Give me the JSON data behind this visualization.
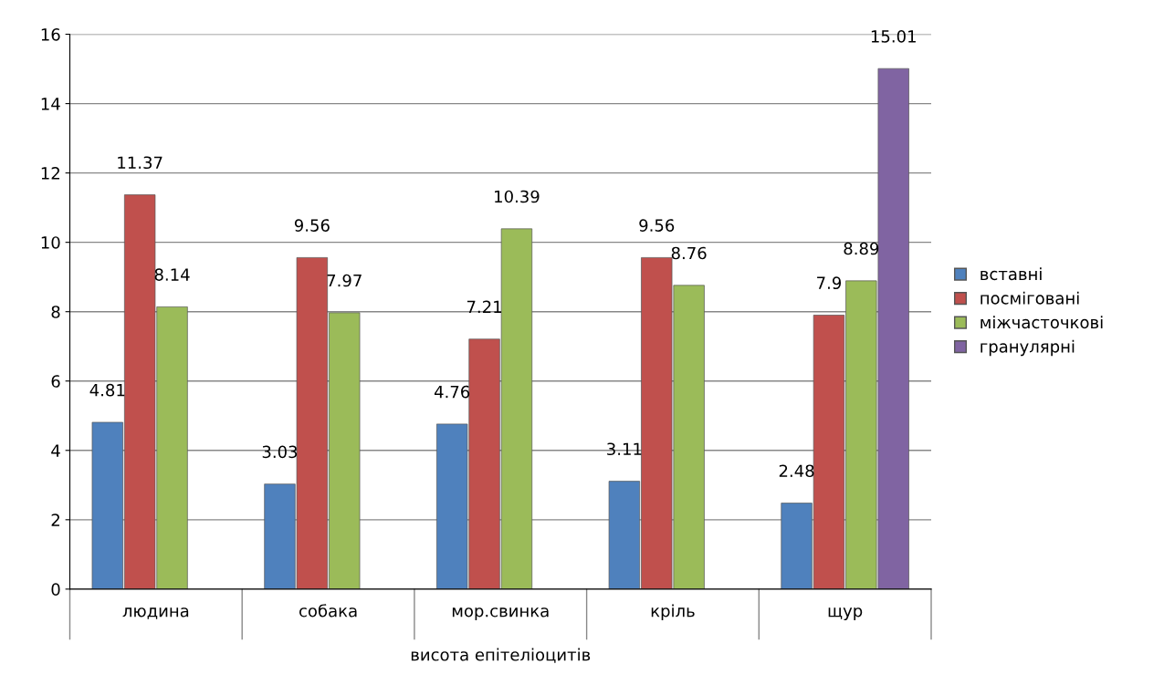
{
  "chart_data": {
    "type": "bar",
    "categories": [
      "людина",
      "собака",
      "мор.свинка",
      "кріль",
      "щур"
    ],
    "xlabel": "висота епітеліоцитів",
    "series": [
      {
        "name": "вставні",
        "color": "#4f81bd",
        "values": [
          4.81,
          3.03,
          4.76,
          3.11,
          2.48
        ]
      },
      {
        "name": "посміговані",
        "color": "#c0504d",
        "values": [
          11.37,
          9.56,
          7.21,
          9.56,
          7.9
        ]
      },
      {
        "name": "міжчасточкові",
        "color": "#9bbb59",
        "values": [
          8.14,
          7.97,
          10.39,
          8.76,
          8.89
        ]
      },
      {
        "name": "гранулярні",
        "color": "#8064a2",
        "values": [
          null,
          null,
          null,
          null,
          15.01
        ]
      }
    ],
    "ylim": [
      0,
      16
    ],
    "yticks": [
      0,
      2,
      4,
      6,
      8,
      10,
      12,
      14,
      16
    ],
    "grid": "y",
    "legend": "right",
    "data_labels": true
  }
}
